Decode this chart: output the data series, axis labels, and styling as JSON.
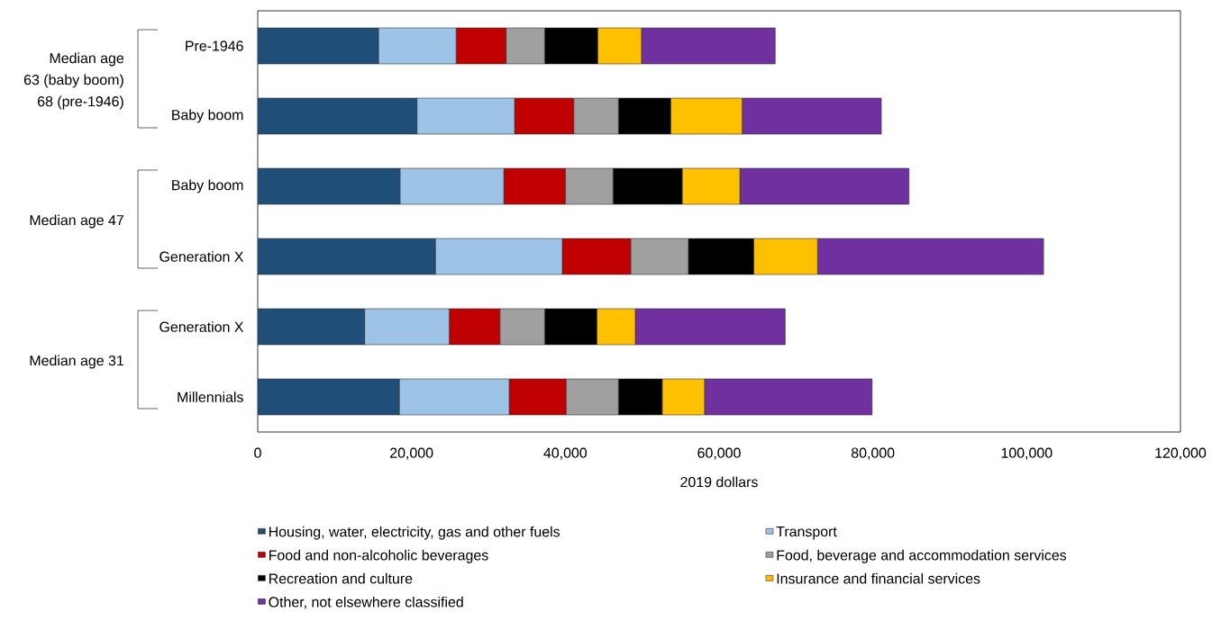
{
  "chart_data": {
    "type": "bar",
    "orientation": "horizontal",
    "stacked": true,
    "xlabel": "2019 dollars",
    "categories": [
      "Pre-1946",
      "Baby boom",
      "Baby boom",
      "Generation X",
      "Generation X",
      "Millennials"
    ],
    "series": [
      {
        "name": "Housing, water, electricity, gas and other fuels",
        "color": "#1f4e79",
        "values": [
          15700,
          20700,
          18500,
          23100,
          13900,
          18400
        ]
      },
      {
        "name": "Transport",
        "color": "#9dc3e6",
        "values": [
          10100,
          12700,
          13500,
          16500,
          11000,
          14300
        ]
      },
      {
        "name": "Food and non-alcoholic beverages",
        "color": "#c00000",
        "values": [
          6500,
          7700,
          8000,
          8900,
          6600,
          7400
        ]
      },
      {
        "name": "Food, beverage and accommodation services",
        "color": "#a0a0a0",
        "values": [
          5000,
          5800,
          6200,
          7500,
          5800,
          6800
        ]
      },
      {
        "name": "Recreation and culture",
        "color": "#000000",
        "values": [
          6900,
          6800,
          9000,
          8500,
          6800,
          5700
        ]
      },
      {
        "name": "Insurance and financial services",
        "color": "#ffc000",
        "values": [
          5700,
          9300,
          7500,
          8300,
          5000,
          5500
        ]
      },
      {
        "name": "Other, not elsewhere classified",
        "color": "#7030a0",
        "values": [
          17400,
          18100,
          22000,
          29400,
          19500,
          21800
        ]
      }
    ],
    "xlim": [
      0,
      120000
    ],
    "xticks": [
      0,
      {
        "value": 20000,
        "label": "20,000"
      },
      {
        "value": 40000,
        "label": "40,000"
      },
      {
        "value": 60000,
        "label": "60,000"
      },
      {
        "value": 80000,
        "label": "80,000"
      },
      {
        "value": 100000,
        "label": "100,000"
      },
      {
        "value": 120000,
        "label": "120,000"
      }
    ],
    "legend": "bottom",
    "annotations": [
      "Median age",
      "63 (baby boom)",
      "68 (pre-1946)",
      "Median age 47",
      "Median age 31"
    ]
  }
}
